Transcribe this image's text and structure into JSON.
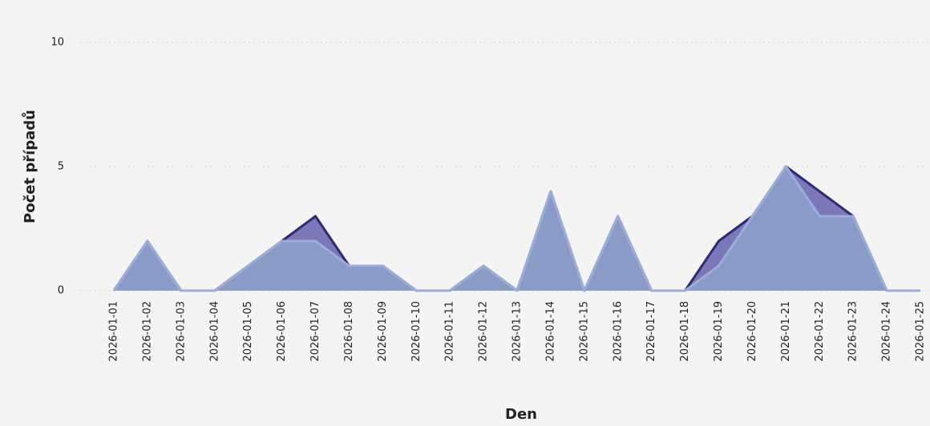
{
  "chart_data": {
    "type": "area",
    "x_label": "Den",
    "y_label": "Počet případů",
    "categories": [
      "2026-01-01",
      "2026-01-02",
      "2026-01-03",
      "2026-01-04",
      "2026-01-05",
      "2026-01-06",
      "2026-01-07",
      "2026-01-08",
      "2026-01-09",
      "2026-01-10",
      "2026-01-11",
      "2026-01-12",
      "2026-01-13",
      "2026-01-14",
      "2026-01-15",
      "2026-01-16",
      "2026-01-17",
      "2026-01-18",
      "2026-01-19",
      "2026-01-20",
      "2026-01-21",
      "2026-01-22",
      "2026-01-23",
      "2026-01-24",
      "2026-01-25"
    ],
    "series": [
      {
        "color": "#2e2a78",
        "fill": "#7b78b9",
        "values": [
          0,
          2,
          0,
          0,
          1,
          2,
          3,
          1,
          1,
          0,
          0,
          1,
          0,
          4,
          0,
          3,
          0,
          0,
          2,
          3,
          5,
          4,
          3,
          0,
          0
        ]
      },
      {
        "color": "#9badd9",
        "fill": "#8b9bc8",
        "values": [
          0,
          2,
          0,
          0,
          1,
          2,
          2,
          1,
          1,
          0,
          0,
          1,
          0,
          4,
          0,
          3,
          0,
          0,
          1,
          3,
          5,
          3,
          3,
          0,
          0
        ]
      }
    ],
    "ylim": [
      0,
      10
    ],
    "yticks": [
      0,
      5,
      10
    ],
    "grid": true
  }
}
